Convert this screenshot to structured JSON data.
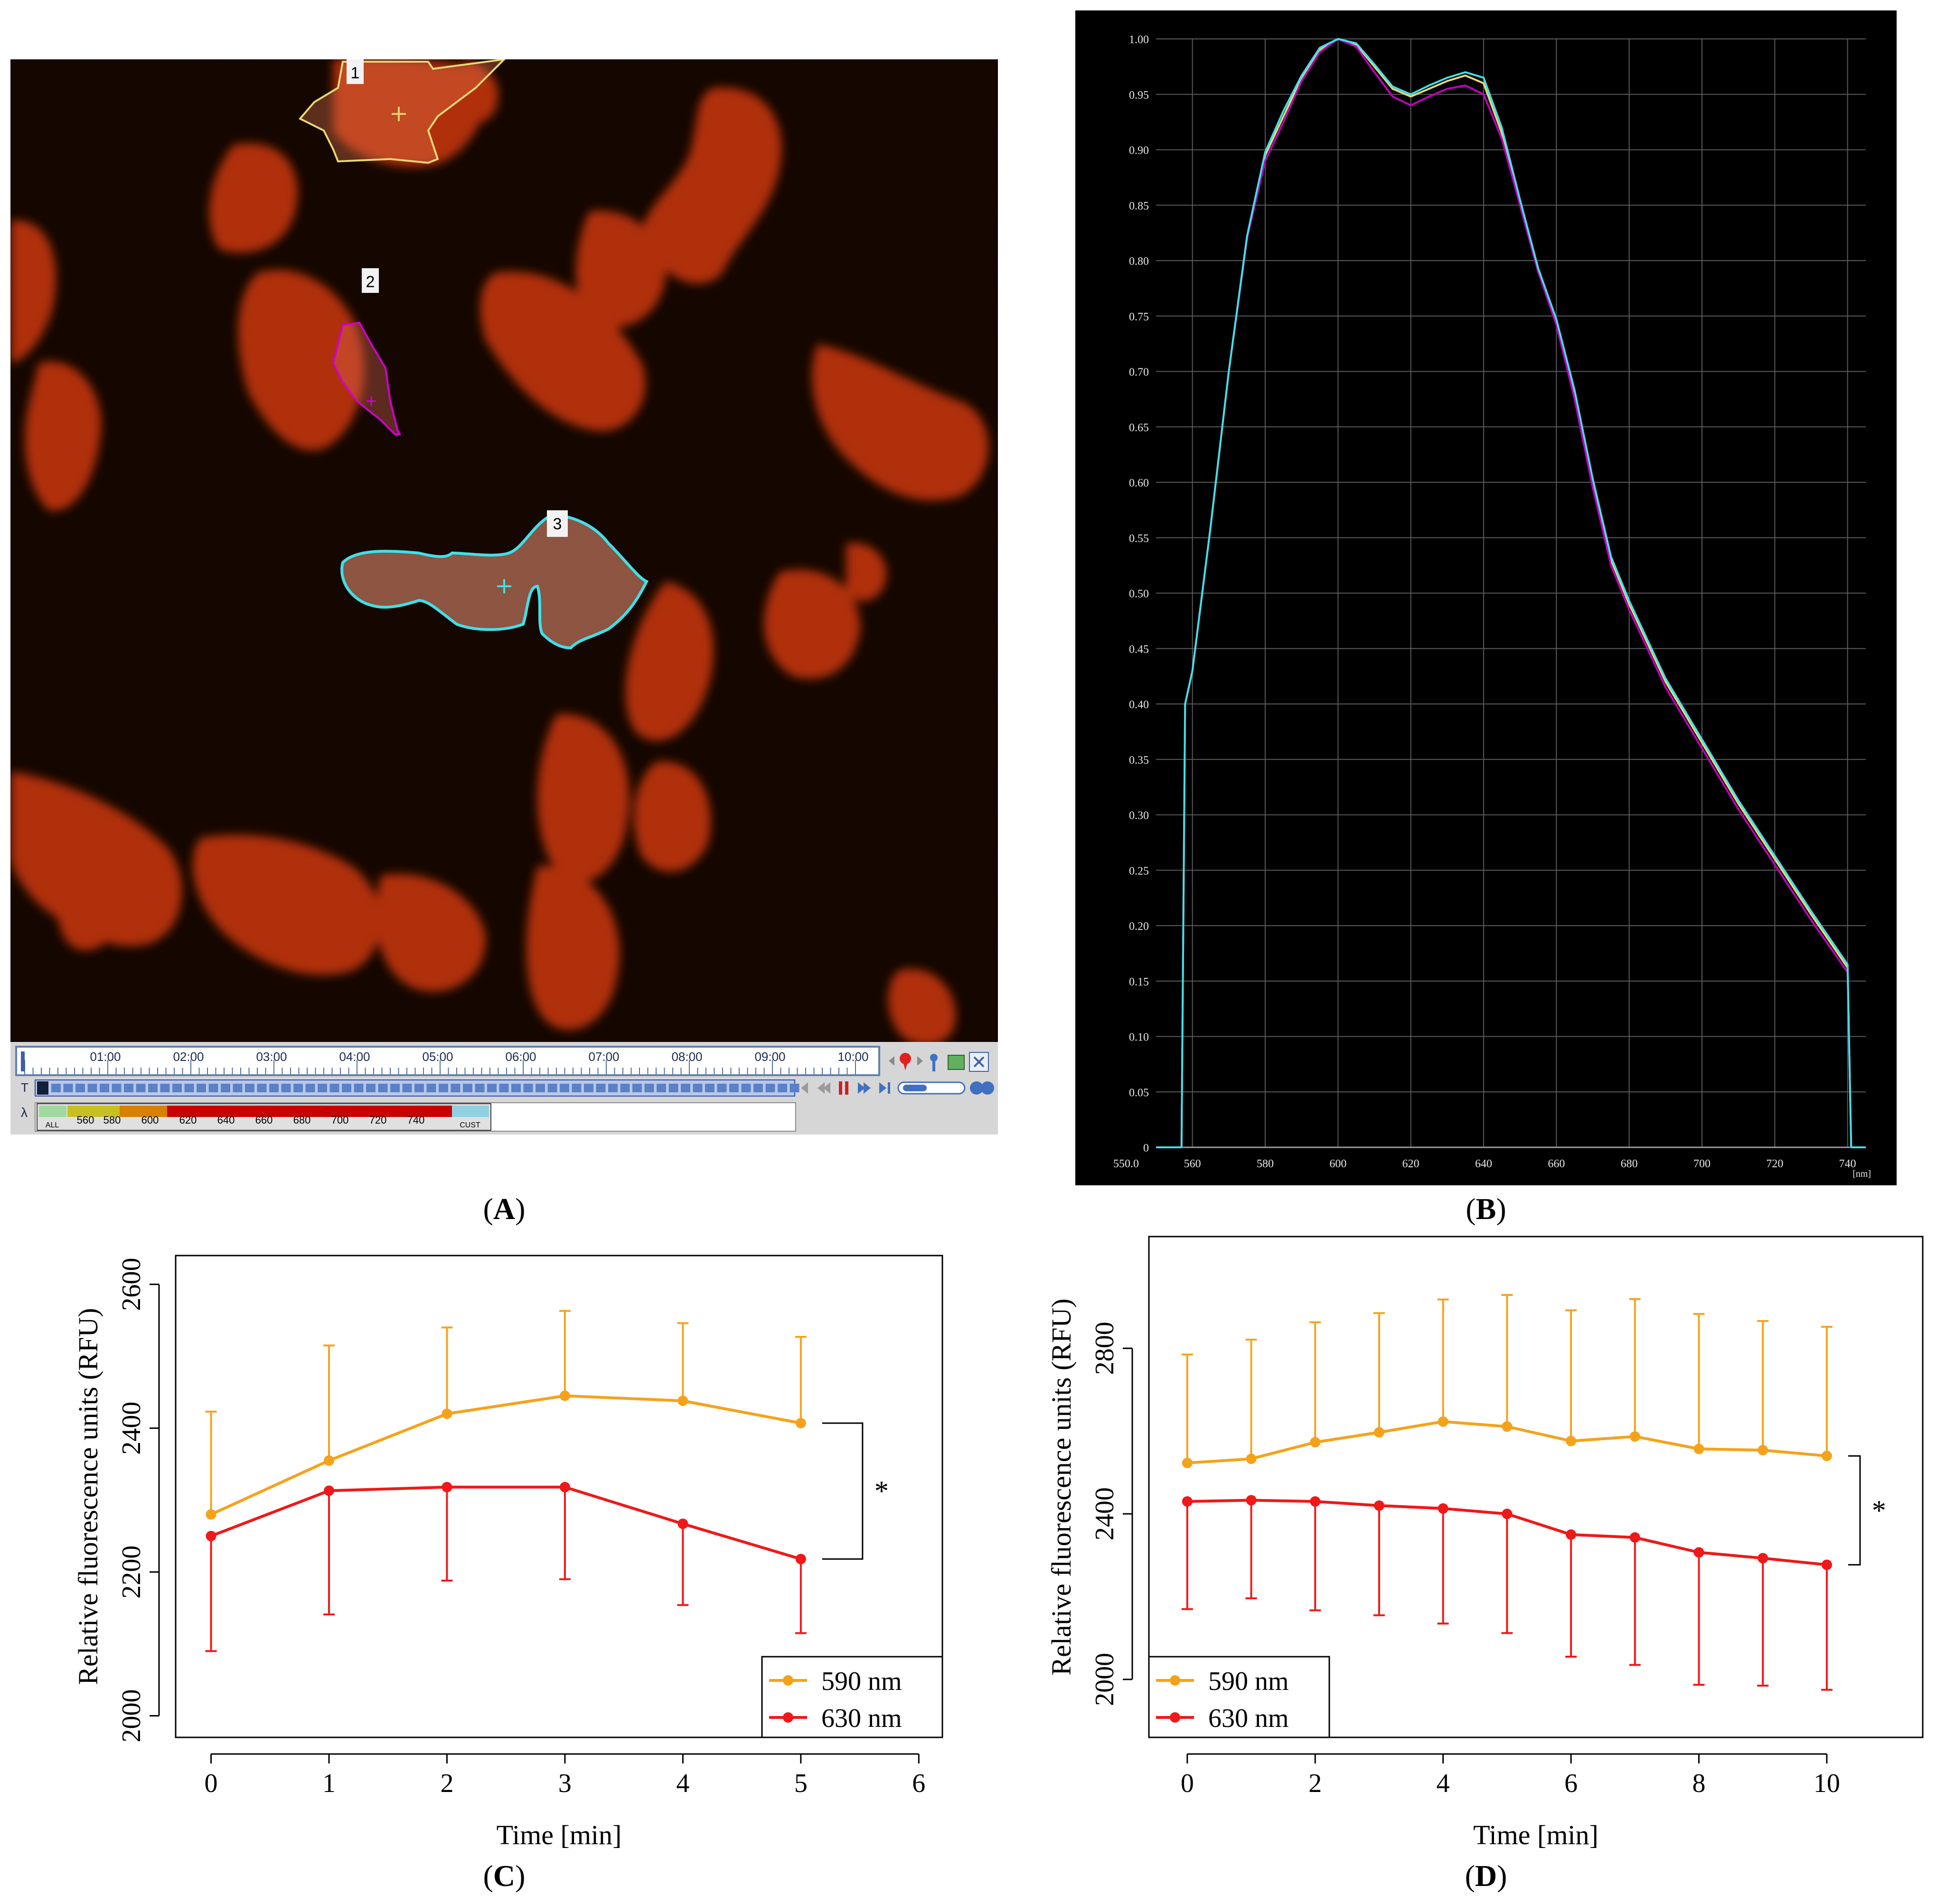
{
  "captions": {
    "a": "A",
    "b": "B",
    "c": "C",
    "d": "D"
  },
  "panel_a": {
    "roi_labels": [
      "1",
      "2",
      "3"
    ],
    "timeline_ticks": [
      "01:00",
      "02:00",
      "03:00",
      "04:00",
      "05:00",
      "06:00",
      "07:00",
      "08:00",
      "09:00",
      "10:00"
    ],
    "lambda_labels": [
      "ALL",
      "560",
      "580",
      "600",
      "620",
      "640",
      "660",
      "680",
      "700",
      "720",
      "740",
      "CUST"
    ],
    "row_t": "T",
    "row_lambda": "λ",
    "colors": {
      "roi1": "#e8d878",
      "roi2": "#d000d0",
      "roi3": "#40e0e8",
      "cell": "#c83212",
      "background": "#060000"
    }
  },
  "chart_data": [
    {
      "id": "B",
      "type": "line",
      "background": "#000000",
      "x_unit": "[nm]",
      "xlim": [
        550,
        745
      ],
      "ylim": [
        0,
        1.0
      ],
      "x_ticks": [
        "550.0",
        "560",
        "580",
        "600",
        "620",
        "640",
        "660",
        "680",
        "700",
        "720",
        "740"
      ],
      "y_ticks": [
        "0",
        "0.05",
        "0.10",
        "0.15",
        "0.20",
        "0.25",
        "0.30",
        "0.35",
        "0.40",
        "0.45",
        "0.50",
        "0.55",
        "0.60",
        "0.65",
        "0.70",
        "0.75",
        "0.80",
        "0.85",
        "0.90",
        "0.95",
        "1.00"
      ],
      "x": [
        557,
        558,
        560,
        565,
        570,
        575,
        580,
        585,
        590,
        595,
        600,
        605,
        610,
        615,
        620,
        625,
        630,
        635,
        640,
        645,
        650,
        655,
        660,
        665,
        670,
        675,
        680,
        685,
        690,
        700,
        710,
        720,
        730,
        740,
        741
      ],
      "series": [
        {
          "name": "ROI 1",
          "color": "#e8d878",
          "values": [
            0,
            0.4,
            0.43,
            0.56,
            0.7,
            0.82,
            0.895,
            0.93,
            0.965,
            0.99,
            1.0,
            0.995,
            0.975,
            0.955,
            0.948,
            0.955,
            0.962,
            0.967,
            0.96,
            0.915,
            0.85,
            0.79,
            0.745,
            0.68,
            0.6,
            0.53,
            0.49,
            0.455,
            0.42,
            0.365,
            0.31,
            0.26,
            0.21,
            0.162,
            0
          ]
        },
        {
          "name": "ROI 2",
          "color": "#c000c0",
          "values": [
            0,
            0.4,
            0.43,
            0.56,
            0.7,
            0.82,
            0.89,
            0.925,
            0.962,
            0.988,
            1.0,
            0.993,
            0.97,
            0.948,
            0.94,
            0.948,
            0.955,
            0.958,
            0.95,
            0.91,
            0.85,
            0.79,
            0.742,
            0.675,
            0.595,
            0.525,
            0.485,
            0.45,
            0.415,
            0.36,
            0.305,
            0.255,
            0.205,
            0.158,
            0
          ]
        },
        {
          "name": "ROI 3",
          "color": "#40e0e8",
          "values": [
            0,
            0.4,
            0.43,
            0.56,
            0.7,
            0.822,
            0.898,
            0.935,
            0.967,
            0.992,
            1.0,
            0.996,
            0.977,
            0.957,
            0.95,
            0.958,
            0.965,
            0.97,
            0.965,
            0.92,
            0.855,
            0.793,
            0.747,
            0.683,
            0.603,
            0.533,
            0.493,
            0.458,
            0.423,
            0.368,
            0.313,
            0.263,
            0.213,
            0.165,
            0
          ]
        }
      ]
    },
    {
      "id": "C",
      "type": "line",
      "xlabel": "Time [min]",
      "ylabel": "Relative fluorescence units (RFU)",
      "xlim": [
        -0.3,
        6.2
      ],
      "ylim": [
        1970,
        2640
      ],
      "x_ticks": [
        0,
        1,
        2,
        3,
        4,
        5,
        6
      ],
      "y_ticks": [
        2000,
        2200,
        2400,
        2600
      ],
      "x": [
        0,
        1,
        2,
        3,
        4,
        5
      ],
      "series": [
        {
          "name": "590 nm",
          "color": "#f5a21b",
          "error_dir": "up",
          "values": [
            2280,
            2355,
            2420,
            2445,
            2438,
            2407
          ],
          "errors": [
            143,
            160,
            120,
            118,
            108,
            120
          ]
        },
        {
          "name": "630 nm",
          "color": "#f01818",
          "error_dir": "down",
          "values": [
            2250,
            2313,
            2318,
            2318,
            2267,
            2218
          ],
          "errors": [
            160,
            172,
            130,
            128,
            113,
            103
          ]
        }
      ],
      "significance": "*",
      "legend": "bottom-right"
    },
    {
      "id": "D",
      "type": "line",
      "xlabel": "Time [min]",
      "ylabel": "Relative fluorescence units (RFU)",
      "xlim": [
        -0.6,
        11.5
      ],
      "ylim": [
        1860,
        3070
      ],
      "x_ticks": [
        0,
        2,
        4,
        6,
        8,
        10
      ],
      "y_ticks": [
        2000,
        2400,
        2800
      ],
      "x": [
        0,
        1,
        2,
        3,
        4,
        5,
        6,
        7,
        8,
        9,
        10
      ],
      "series": [
        {
          "name": "590 nm",
          "color": "#f5a21b",
          "error_dir": "up",
          "values": [
            2523,
            2533,
            2573,
            2597,
            2623,
            2611,
            2576,
            2587,
            2557,
            2554,
            2540
          ],
          "errors": [
            262,
            288,
            290,
            288,
            295,
            318,
            316,
            332,
            326,
            312,
            312
          ]
        },
        {
          "name": "630 nm",
          "color": "#f01818",
          "error_dir": "down",
          "values": [
            2430,
            2433,
            2430,
            2420,
            2413,
            2400,
            2350,
            2343,
            2307,
            2293,
            2277
          ],
          "errors": [
            260,
            237,
            263,
            265,
            278,
            288,
            295,
            308,
            320,
            308,
            302
          ]
        }
      ],
      "significance": "*",
      "legend": "bottom-left"
    }
  ]
}
